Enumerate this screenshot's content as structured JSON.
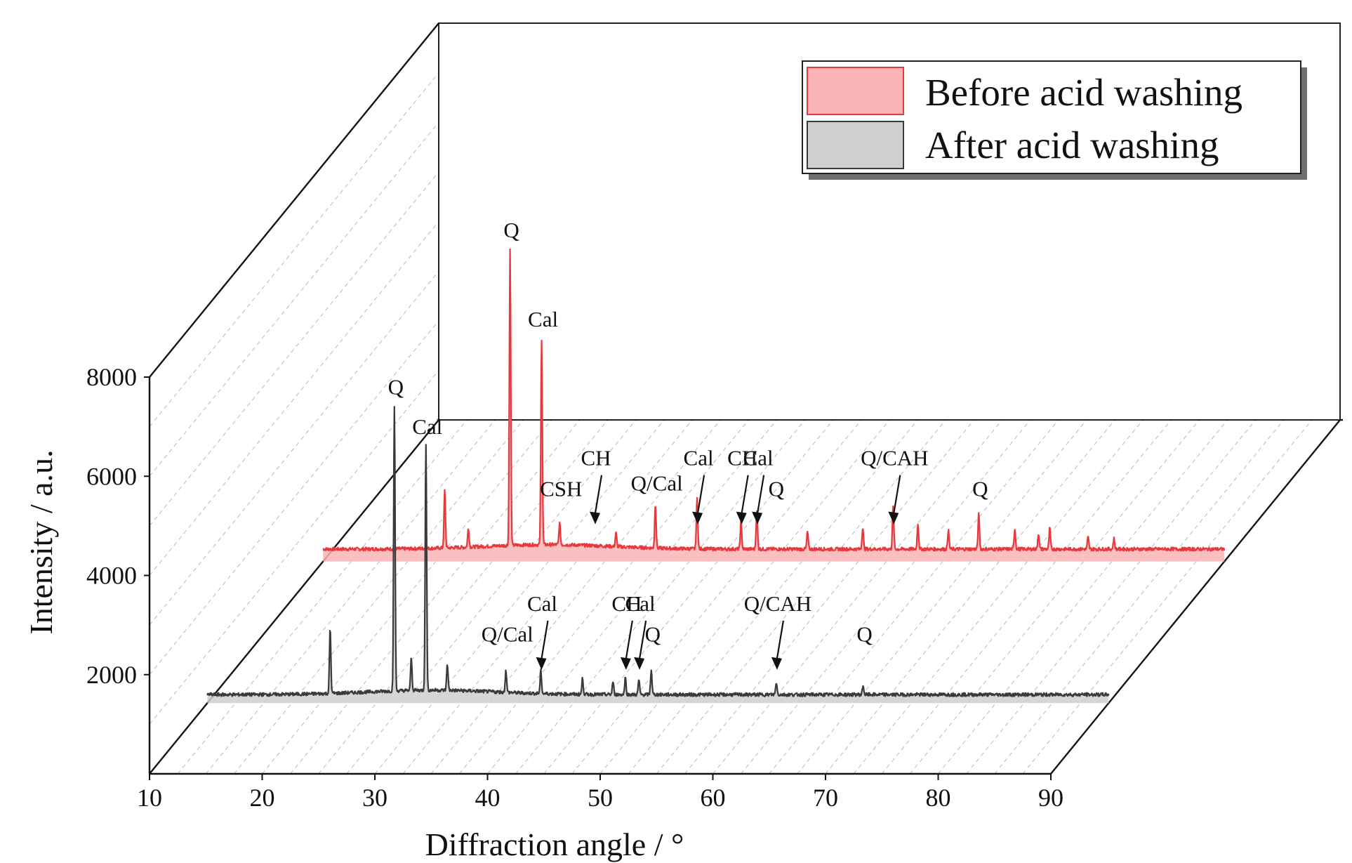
{
  "chart_data": {
    "type": "line",
    "subtype": "3d-waterfall",
    "title": "",
    "xlabel": "Diffraction angle  / °",
    "ylabel": "Intensity / a.u.",
    "xlim": [
      10,
      90
    ],
    "ylim": [
      0,
      8000
    ],
    "x_ticks": [
      "10",
      "20",
      "30",
      "40",
      "50",
      "60",
      "70",
      "80",
      "90"
    ],
    "y_ticks": [
      "2000",
      "4000",
      "6000",
      "8000"
    ],
    "grid": true,
    "legend_position": "top-right",
    "legend": [
      {
        "label": "Before acid washing",
        "color": "#e8383d",
        "fill": "#f9b4b5"
      },
      {
        "label": "After acid washing",
        "color": "#3a3a3a",
        "fill": "#cfcfcf"
      }
    ],
    "series": [
      {
        "name": "Before acid washing",
        "depth": "back",
        "color": "#e8383d",
        "fill": "#f9b4b5",
        "baseline": 250,
        "peaks": [
          [
            20.8,
            1150
          ],
          [
            22.9,
            380
          ],
          [
            26.6,
            5950
          ],
          [
            29.4,
            4150
          ],
          [
            31.0,
            430
          ],
          [
            36.0,
            270
          ],
          [
            39.5,
            900
          ],
          [
            43.2,
            1020
          ],
          [
            47.1,
            550
          ],
          [
            48.5,
            780
          ],
          [
            53.0,
            350
          ],
          [
            57.9,
            430
          ],
          [
            60.6,
            850
          ],
          [
            62.8,
            520
          ],
          [
            65.5,
            380
          ],
          [
            68.2,
            700
          ],
          [
            71.4,
            400
          ],
          [
            73.5,
            320
          ],
          [
            74.5,
            420
          ],
          [
            77.9,
            240
          ],
          [
            80.2,
            210
          ]
        ],
        "annotations": [
          {
            "text": "Q",
            "x": 26.6,
            "arrow": false
          },
          {
            "text": "Cal",
            "x": 29.4,
            "arrow": false
          },
          {
            "text": "CSH",
            "x": 31.0,
            "arrow": false
          },
          {
            "text": "CH",
            "x": 34.1,
            "arrow": true
          },
          {
            "text": "Q/Cal",
            "x": 39.5,
            "arrow": false
          },
          {
            "text": "Cal",
            "x": 43.2,
            "arrow": true
          },
          {
            "text": "CH",
            "x": 47.1,
            "arrow": true
          },
          {
            "text": "Cal",
            "x": 48.5,
            "arrow": true
          },
          {
            "text": "Q",
            "x": 50.1,
            "arrow": false
          },
          {
            "text": "Q/CAH",
            "x": 60.6,
            "arrow": true
          },
          {
            "text": "Q",
            "x": 68.2,
            "arrow": false
          }
        ]
      },
      {
        "name": "After acid washing",
        "depth": "front",
        "color": "#3a3a3a",
        "fill": "#cfcfcf",
        "baseline": 170,
        "peaks": [
          [
            20.9,
            1300
          ],
          [
            26.6,
            5750
          ],
          [
            28.1,
            650
          ],
          [
            29.4,
            4950
          ],
          [
            31.3,
            530
          ],
          [
            36.5,
            450
          ],
          [
            39.6,
            460
          ],
          [
            43.3,
            320
          ],
          [
            46.0,
            260
          ],
          [
            47.1,
            340
          ],
          [
            48.3,
            300
          ],
          [
            49.4,
            500
          ],
          [
            60.5,
            250
          ],
          [
            68.2,
            180
          ]
        ],
        "annotations": [
          {
            "text": "Q",
            "x": 26.6,
            "arrow": false
          },
          {
            "text": "Cal",
            "x": 29.4,
            "arrow": false
          },
          {
            "text": "Q/Cal",
            "x": 36.5,
            "arrow": false
          },
          {
            "text": "Cal",
            "x": 39.6,
            "arrow": true
          },
          {
            "text": "CH",
            "x": 47.1,
            "arrow": true
          },
          {
            "text": "Cal",
            "x": 48.3,
            "arrow": true
          },
          {
            "text": "Q",
            "x": 49.4,
            "arrow": false
          },
          {
            "text": "Q/CAH",
            "x": 60.5,
            "arrow": true
          },
          {
            "text": "Q",
            "x": 68.2,
            "arrow": false
          }
        ]
      }
    ]
  }
}
